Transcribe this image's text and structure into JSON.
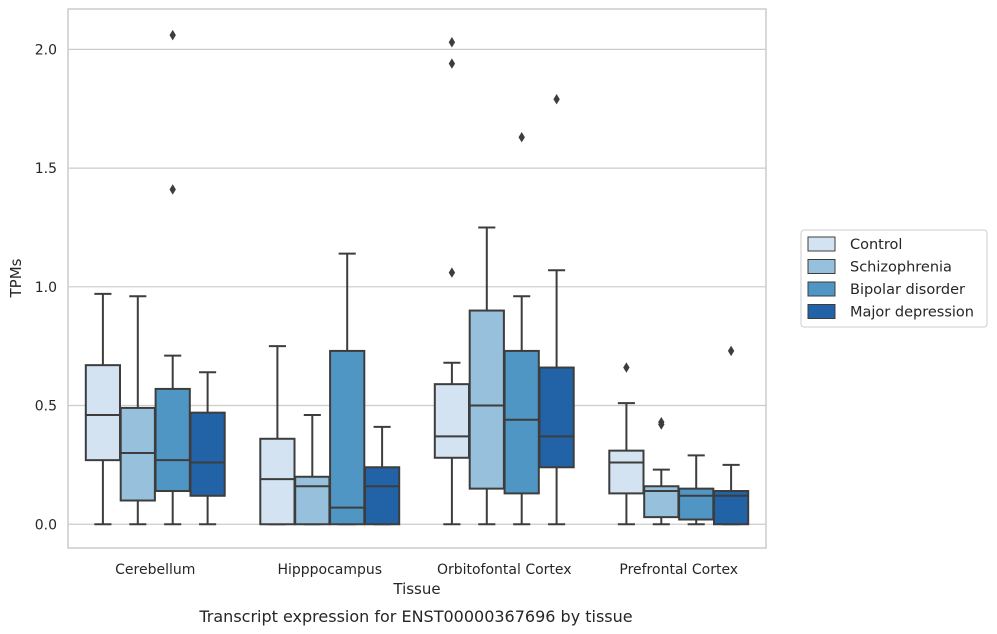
{
  "chart_data": {
    "type": "boxplot",
    "caption": "Transcript expression for ENST00000367696 by tissue",
    "xlabel": "Tissue",
    "ylabel": "TPMs",
    "ylim": [
      -0.1,
      2.17
    ],
    "yticks": [
      "0.0",
      "0.5",
      "1.0",
      "1.5",
      "2.0"
    ],
    "grid": true,
    "legend_position": "right",
    "categories": [
      "Cerebellum",
      "Hipppocampus",
      "Orbitofontal Cortex",
      "Prefrontal Cortex"
    ],
    "series": [
      {
        "name": "Control",
        "color": "#d3e3f2",
        "boxes": [
          {
            "whislo": 0.0,
            "q1": 0.27,
            "med": 0.46,
            "q3": 0.67,
            "whishi": 0.97,
            "fliers": []
          },
          {
            "whislo": 0.0,
            "q1": 0.0,
            "med": 0.19,
            "q3": 0.36,
            "whishi": 0.75,
            "fliers": []
          },
          {
            "whislo": 0.0,
            "q1": 0.28,
            "med": 0.37,
            "q3": 0.59,
            "whishi": 0.68,
            "fliers": [
              1.06,
              1.94,
              2.03
            ]
          },
          {
            "whislo": 0.0,
            "q1": 0.13,
            "med": 0.26,
            "q3": 0.31,
            "whishi": 0.51,
            "fliers": [
              0.66
            ]
          }
        ]
      },
      {
        "name": "Schizophrenia",
        "color": "#96c0dc",
        "boxes": [
          {
            "whislo": 0.0,
            "q1": 0.1,
            "med": 0.3,
            "q3": 0.49,
            "whishi": 0.96,
            "fliers": []
          },
          {
            "whislo": 0.0,
            "q1": 0.0,
            "med": 0.16,
            "q3": 0.2,
            "whishi": 0.46,
            "fliers": []
          },
          {
            "whislo": 0.0,
            "q1": 0.15,
            "med": 0.5,
            "q3": 0.9,
            "whishi": 1.25,
            "fliers": []
          },
          {
            "whislo": 0.0,
            "q1": 0.03,
            "med": 0.14,
            "q3": 0.16,
            "whishi": 0.23,
            "fliers": [
              0.42,
              0.43
            ]
          }
        ]
      },
      {
        "name": "Bipolar disorder",
        "color": "#5096c5",
        "boxes": [
          {
            "whislo": 0.0,
            "q1": 0.14,
            "med": 0.27,
            "q3": 0.57,
            "whishi": 0.71,
            "fliers": [
              1.41,
              2.06
            ]
          },
          {
            "whislo": 0.0,
            "q1": 0.0,
            "med": 0.07,
            "q3": 0.73,
            "whishi": 1.14,
            "fliers": []
          },
          {
            "whislo": 0.0,
            "q1": 0.13,
            "med": 0.44,
            "q3": 0.73,
            "whishi": 0.96,
            "fliers": [
              1.63
            ]
          },
          {
            "whislo": 0.0,
            "q1": 0.02,
            "med": 0.12,
            "q3": 0.15,
            "whishi": 0.29,
            "fliers": []
          }
        ]
      },
      {
        "name": "Major depression",
        "color": "#2163a6",
        "boxes": [
          {
            "whislo": 0.0,
            "q1": 0.12,
            "med": 0.26,
            "q3": 0.47,
            "whishi": 0.64,
            "fliers": []
          },
          {
            "whislo": 0.0,
            "q1": 0.0,
            "med": 0.16,
            "q3": 0.24,
            "whishi": 0.41,
            "fliers": []
          },
          {
            "whislo": 0.0,
            "q1": 0.24,
            "med": 0.37,
            "q3": 0.66,
            "whishi": 1.07,
            "fliers": [
              1.79
            ]
          },
          {
            "whislo": 0.0,
            "q1": 0.0,
            "med": 0.12,
            "q3": 0.14,
            "whishi": 0.25,
            "fliers": [
              0.73
            ]
          }
        ]
      }
    ]
  }
}
